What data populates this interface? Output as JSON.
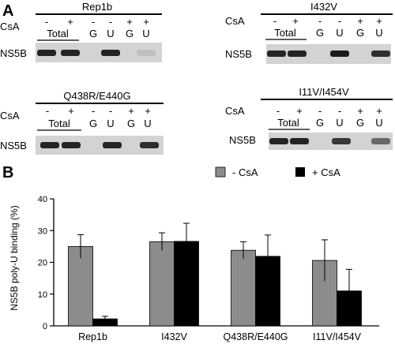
{
  "panel_a": {
    "letter": "A",
    "csa_label": "CsA",
    "protein_label": "NS5B",
    "total_label": "Total",
    "blots": [
      {
        "title": "Rep1b",
        "signs": [
          "-",
          "+",
          "-",
          "-",
          "+",
          "+"
        ],
        "lanes": [
          "G",
          "U",
          "G",
          "U"
        ],
        "band_intensity": [
          0.9,
          0.9,
          0.0,
          0.9,
          0.0,
          0.1
        ]
      },
      {
        "title": "I432V",
        "signs": [
          "-",
          "+",
          "-",
          "-",
          "+",
          "+"
        ],
        "lanes": [
          "G",
          "U",
          "G",
          "U"
        ],
        "band_intensity": [
          0.9,
          0.9,
          0.0,
          0.95,
          0.0,
          0.85
        ]
      },
      {
        "title": "Q438R/E440G",
        "signs": [
          "-",
          "+",
          "-",
          "-",
          "+",
          "+"
        ],
        "lanes": [
          "G",
          "U",
          "G",
          "U"
        ],
        "band_intensity": [
          0.9,
          0.9,
          0.0,
          0.9,
          0.0,
          0.85
        ]
      },
      {
        "title": "I11V/I454V",
        "signs": [
          "-",
          "+",
          "-",
          "-",
          "+",
          "+"
        ],
        "lanes": [
          "G",
          "U",
          "G",
          "U"
        ],
        "band_intensity": [
          0.9,
          0.9,
          0.0,
          0.8,
          0.0,
          0.55
        ]
      }
    ]
  },
  "panel_b": {
    "letter": "B"
  },
  "chart_data": {
    "type": "bar",
    "categories": [
      "Rep1b",
      "I432V",
      "Q438R/E440G",
      "I11V/I454V"
    ],
    "series": [
      {
        "name": "- CsA",
        "color": "#8c8c8c",
        "values": [
          25.0,
          26.5,
          23.8,
          20.6
        ],
        "errors": [
          3.7,
          2.8,
          2.7,
          6.5
        ]
      },
      {
        "name": "+ CsA",
        "color": "#000000",
        "values": [
          2.2,
          26.6,
          21.9,
          11.0
        ],
        "errors": [
          0.8,
          5.7,
          6.7,
          6.8
        ]
      }
    ],
    "ylabel": "NS5B poly-U binding (%)",
    "xlabel": "",
    "ylim": [
      0,
      40
    ],
    "yticks": [
      "0",
      "10",
      "20",
      "30",
      "40"
    ],
    "legend_position": "top"
  }
}
